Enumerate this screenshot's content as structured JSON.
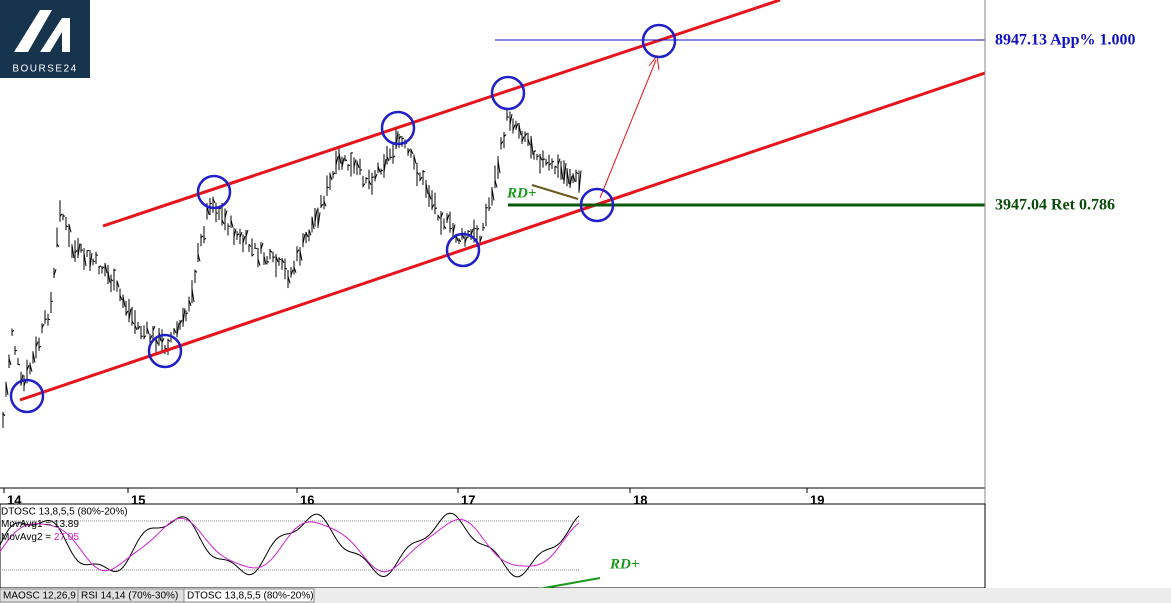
{
  "logo": {
    "text": "BOURSE24"
  },
  "annotations": {
    "target": "8947.13 App% 1.000",
    "retrace": "3947.04 Ret 0.786",
    "divergence_price": "RD+",
    "divergence_osc": "RD+"
  },
  "x_axis": {
    "labels": [
      "14",
      "15",
      "16",
      "17",
      "18",
      "19"
    ]
  },
  "oscillator": {
    "title": "DTOSC 13,8,5,5 (80%-20%)",
    "mov_avg1_label": "MovAvg1 = ",
    "mov_avg1_value": "13.89",
    "mov_avg2_label": "MovAvg2 = ",
    "mov_avg2_value": "27.05"
  },
  "tabs": [
    "MAOSC 12,26,9",
    "RSI 14,14 (70%-30%)",
    "DTOSC 13,8,5,5 (80%-20%)"
  ]
}
